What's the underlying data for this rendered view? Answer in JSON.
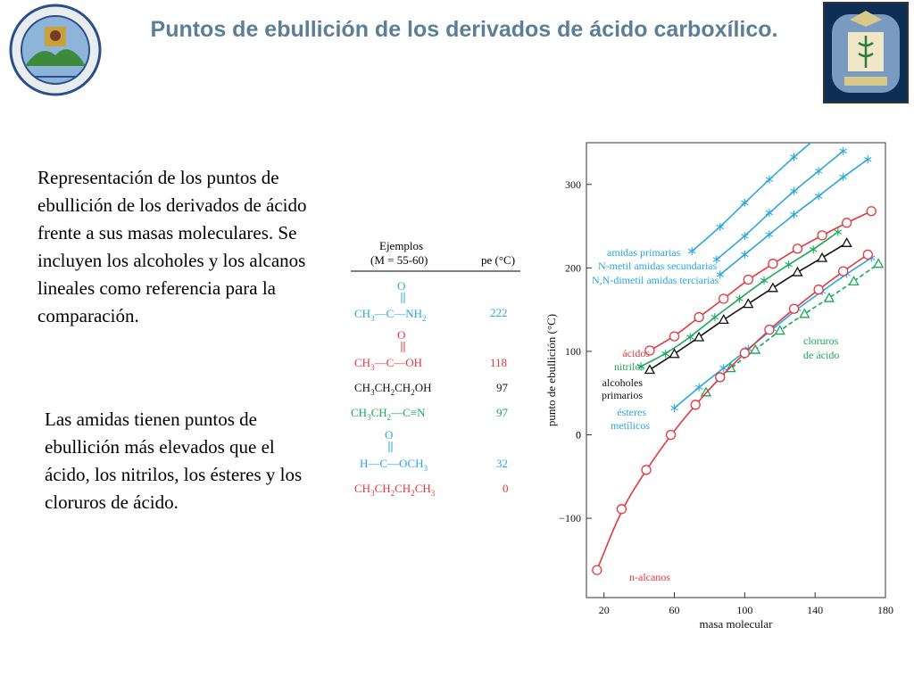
{
  "slide": {
    "title": "Puntos de ebullición de los derivados de ácido carboxílico.",
    "paragraph1": "Representación de los puntos de ebullición de los derivados de ácido frente a sus masas moleculares. Se incluyen los alcoholes y los alcanos lineales como referencia para la comparación.",
    "paragraph2": "Las amidas tienen puntos de ebullición más elevados que el ácido, los nitrilos, los ésteres y los cloruros de ácido."
  },
  "logos": {
    "left": "university-seal-icon",
    "right": "faculty-crest-icon"
  },
  "examples_table": {
    "header_col1_line1": "Ejemplos",
    "header_col1_line2": "(M = 55-60)",
    "header_col2": "pe (°C)",
    "rows": [
      {
        "formula": "CH3—C(=O)—NH2",
        "bp": "222",
        "color": "#29a8df"
      },
      {
        "formula": "CH3—C(=O)—OH",
        "bp": "118",
        "color": "#e3373f"
      },
      {
        "formula": "CH3CH2CH2OH",
        "bp": "97",
        "color": "#111111"
      },
      {
        "formula": "CH3CH2—C≡N",
        "bp": "97",
        "color": "#1aa85a"
      },
      {
        "formula": "H—C(=O)—OCH3",
        "bp": "32",
        "color": "#29a8df"
      },
      {
        "formula": "CH3CH2CH2CH3",
        "bp": "0",
        "color": "#e3373f"
      }
    ]
  },
  "chart_data": {
    "type": "line",
    "title": "",
    "xlabel": "masa molecular",
    "ylabel": "punto de ebullición (°C)",
    "xlim": [
      10,
      180
    ],
    "ylim": [
      -195,
      350
    ],
    "xticks": [
      20,
      60,
      100,
      140,
      180
    ],
    "yticks": [
      -100,
      0,
      100,
      200,
      300
    ],
    "grid": false,
    "series": [
      {
        "name": "amidas primarias",
        "color": "#29a8df",
        "marker": "asterisk",
        "x": [
          70,
          86,
          100,
          114,
          128,
          142
        ],
        "y": [
          220,
          249,
          278,
          306,
          333,
          358
        ]
      },
      {
        "name": "N-metil amidas secundarias",
        "color": "#29a8df",
        "marker": "asterisk",
        "x": [
          84,
          100,
          114,
          128,
          142,
          156
        ],
        "y": [
          210,
          238,
          266,
          292,
          316,
          340
        ]
      },
      {
        "name": "N,N-dimetil amidas terciarias",
        "color": "#29a8df",
        "marker": "asterisk",
        "x": [
          86,
          100,
          114,
          128,
          142,
          156,
          170
        ],
        "y": [
          192,
          216,
          240,
          264,
          286,
          309,
          330
        ]
      },
      {
        "name": "ácidos",
        "color": "#e3373f",
        "marker": "circle",
        "x": [
          46,
          60,
          74,
          88,
          102,
          116,
          130,
          144,
          158,
          172
        ],
        "y": [
          101,
          118,
          141,
          163,
          186,
          205,
          223,
          239,
          254,
          268
        ]
      },
      {
        "name": "nitrilos",
        "color": "#1aa85a",
        "marker": "asterisk",
        "x": [
          41,
          55,
          69,
          83,
          97,
          111,
          125,
          139,
          153
        ],
        "y": [
          82,
          97,
          117,
          141,
          163,
          185,
          204,
          222,
          243
        ]
      },
      {
        "name": "alcoholes primarios",
        "color": "#111111",
        "marker": "triangle",
        "x": [
          46,
          60,
          74,
          88,
          102,
          116,
          130,
          144,
          158
        ],
        "y": [
          78,
          97,
          117,
          138,
          157,
          176,
          195,
          212,
          230
        ]
      },
      {
        "name": "ésteres metílicos",
        "color": "#29a8df",
        "marker": "asterisk",
        "x": [
          60,
          74,
          88,
          102,
          116,
          130,
          144,
          158,
          172
        ],
        "y": [
          32,
          57,
          80,
          103,
          127,
          151,
          172,
          193,
          212
        ]
      },
      {
        "name": "cloruros de ácido",
        "color": "#1aa85a",
        "marker": "triangle",
        "dashed": true,
        "x": [
          78,
          92,
          106,
          120,
          134,
          148,
          162,
          176
        ],
        "y": [
          51,
          80,
          102,
          125,
          145,
          164,
          184,
          205
        ]
      },
      {
        "name": "n-alcanos",
        "color": "#e3373f",
        "marker": "circle",
        "x": [
          16,
          30,
          44,
          58,
          72,
          86,
          100,
          114,
          128,
          142,
          156,
          170
        ],
        "y": [
          -162,
          -89,
          -42,
          0,
          36,
          69,
          98,
          126,
          151,
          174,
          196,
          216
        ]
      }
    ],
    "annotations": [
      {
        "text": "amidas primarias",
        "color": "#29a8df"
      },
      {
        "text": "N-metil amidas secundarias",
        "color": "#29a8df"
      },
      {
        "text": "N,N-dimetil amidas terciarias",
        "color": "#29a8df"
      },
      {
        "text": "ácidos",
        "color": "#e3373f"
      },
      {
        "text": "nitrilos",
        "color": "#1aa85a"
      },
      {
        "text": "alcoholes",
        "color": "#111111"
      },
      {
        "text": "primarios",
        "color": "#111111"
      },
      {
        "text": "ésteres",
        "color": "#29a8df"
      },
      {
        "text": "metílicos",
        "color": "#29a8df"
      },
      {
        "text": "cloruros",
        "color": "#1aa85a"
      },
      {
        "text": "de ácido",
        "color": "#1aa85a"
      },
      {
        "text": "n-alcanos",
        "color": "#e3373f"
      }
    ]
  }
}
